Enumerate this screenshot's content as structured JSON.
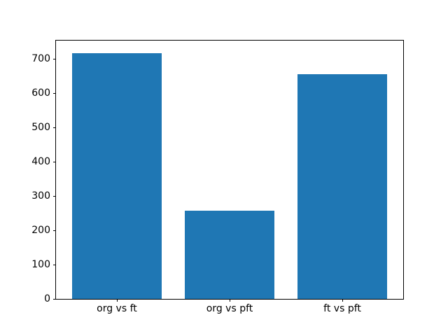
{
  "chart_data": {
    "type": "bar",
    "title": "",
    "xlabel": "",
    "ylabel": "",
    "categories": [
      "org vs ft",
      "org vs pft",
      "ft vs pft"
    ],
    "values": [
      717,
      258,
      656
    ],
    "yticks": [
      0,
      100,
      200,
      300,
      400,
      500,
      600,
      700
    ],
    "ylim": [
      0,
      753
    ],
    "bar_width_fraction": 0.8,
    "grid": false,
    "legend": "none",
    "colors": {
      "bar": "#1f77b4",
      "spine": "#000000",
      "background": "#ffffff",
      "tick_text": "#000000"
    }
  }
}
